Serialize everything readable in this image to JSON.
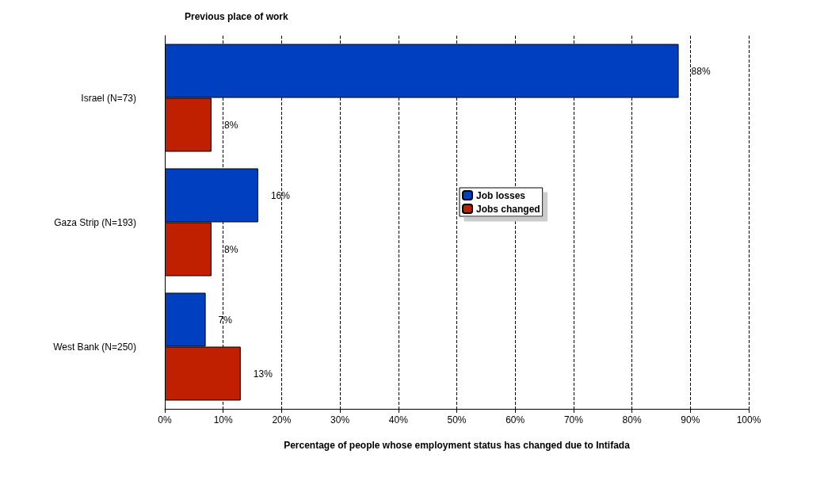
{
  "chart_data": {
    "type": "bar",
    "orientation": "horizontal",
    "title": "Previous place of work",
    "xlabel": "Percentage of people whose employment status has changed due to Intifada",
    "categories": [
      "Israel (N=73)",
      "Gaza Strip (N=193)",
      "West Bank (N=250)"
    ],
    "series": [
      {
        "name": "Job losses",
        "color": "#0040c0",
        "values": [
          88,
          16,
          7
        ],
        "value_labels": [
          "88%",
          "16%",
          "7%"
        ]
      },
      {
        "name": "Jobs changed",
        "color": "#c02000",
        "values": [
          8,
          8,
          13
        ],
        "value_labels": [
          "8%",
          "8%",
          "13%"
        ]
      }
    ],
    "xlim": [
      0,
      100
    ],
    "xticks": [
      {
        "value": 0,
        "label": "0%"
      },
      {
        "value": 10,
        "label": "10%"
      },
      {
        "value": 20,
        "label": "20%"
      },
      {
        "value": 30,
        "label": "30%"
      },
      {
        "value": 40,
        "label": "40%"
      },
      {
        "value": 50,
        "label": "50%"
      },
      {
        "value": 60,
        "label": "60%"
      },
      {
        "value": 70,
        "label": "70%"
      },
      {
        "value": 80,
        "label": "80%"
      },
      {
        "value": 90,
        "label": "90%"
      },
      {
        "value": 100,
        "label": "100%"
      }
    ],
    "grid": "x",
    "line_style": "dashed",
    "legend": "center"
  }
}
